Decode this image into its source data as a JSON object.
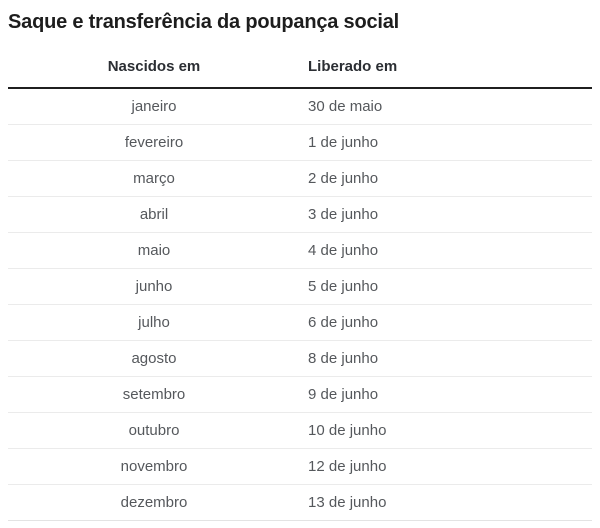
{
  "page": {
    "title": "Saque e transferência da poupança social"
  },
  "table": {
    "headers": [
      "Nascidos em",
      "Liberado em"
    ],
    "rows": [
      {
        "month": "janeiro",
        "date": "30 de maio"
      },
      {
        "month": "fevereiro",
        "date": "1 de junho"
      },
      {
        "month": "março",
        "date": "2 de junho"
      },
      {
        "month": "abril",
        "date": "3 de junho"
      },
      {
        "month": "maio",
        "date": "4 de junho"
      },
      {
        "month": "junho",
        "date": "5 de junho"
      },
      {
        "month": "julho",
        "date": "6 de junho"
      },
      {
        "month": "agosto",
        "date": "8 de junho"
      },
      {
        "month": "setembro",
        "date": "9 de junho"
      },
      {
        "month": "outubro",
        "date": "10 de junho"
      },
      {
        "month": "novembro",
        "date": "12 de junho"
      },
      {
        "month": "dezembro",
        "date": "13 de junho"
      }
    ]
  },
  "colors": {
    "title_text": "#1d1d1d",
    "header_text": "#2b2e33",
    "cell_text": "#55585c",
    "header_rule": "#1f1f1f",
    "row_divider": "#ebebeb"
  },
  "chart_data": {
    "type": "table",
    "title": "Saque e transferência da poupança social",
    "columns": [
      "Nascidos em",
      "Liberado em"
    ],
    "rows": [
      [
        "janeiro",
        "30 de maio"
      ],
      [
        "fevereiro",
        "1 de junho"
      ],
      [
        "março",
        "2 de junho"
      ],
      [
        "abril",
        "3 de junho"
      ],
      [
        "maio",
        "4 de junho"
      ],
      [
        "junho",
        "5 de junho"
      ],
      [
        "julho",
        "6 de junho"
      ],
      [
        "agosto",
        "8 de junho"
      ],
      [
        "setembro",
        "9 de junho"
      ],
      [
        "outubro",
        "10 de junho"
      ],
      [
        "novembro",
        "12 de junho"
      ],
      [
        "dezembro",
        "13 de junho"
      ]
    ],
    "layout": {
      "first_column_align": "center",
      "second_column_align": "left",
      "header_rule": "thick",
      "grid": "horizontal-light"
    }
  }
}
